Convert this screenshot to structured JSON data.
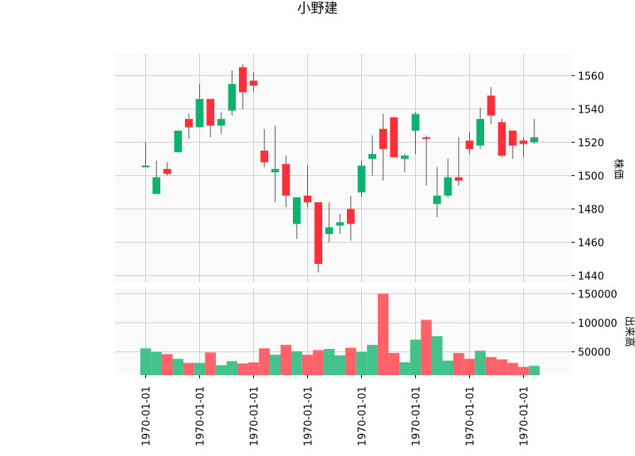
{
  "chart_data": {
    "type": "candlestick",
    "title": "小野建",
    "up_color": "#0fb16e",
    "down_color": "#ff2f3a",
    "volume_up_color": "#44c28c",
    "volume_down_color": "#ff6268",
    "price_panel": {
      "ylabel": "株価",
      "ylim": [
        1436,
        1573
      ],
      "yticks": [
        1440,
        1460,
        1480,
        1500,
        1520,
        1540,
        1560
      ],
      "ytick_labels": [
        "1440",
        "1460",
        "1480",
        "1500",
        "1520",
        "1540",
        "1560"
      ]
    },
    "volume_panel": {
      "ylabel": "出来高",
      "ylim": [
        10000,
        160000
      ],
      "yticks": [
        50000,
        100000,
        150000
      ],
      "ytick_labels": [
        "50000",
        "100000",
        "150000"
      ]
    },
    "x_tick_labels": [
      "1970-01-01",
      "1970-01-01",
      "1970-01-01",
      "1970-01-01",
      "1970-01-01",
      "1970-01-01",
      "1970-01-01",
      "1970-01-01"
    ],
    "x_tick_indices": [
      0,
      5,
      10,
      15,
      20,
      25,
      30,
      35
    ],
    "grid": true,
    "candles": [
      {
        "open": 1505,
        "high": 1520,
        "low": 1505,
        "close": 1506,
        "volume": 56000
      },
      {
        "open": 1489,
        "high": 1509,
        "low": 1489,
        "close": 1499,
        "volume": 50000
      },
      {
        "open": 1504,
        "high": 1508,
        "low": 1500,
        "close": 1501,
        "volume": 46000
      },
      {
        "open": 1514,
        "high": 1527,
        "low": 1514,
        "close": 1527,
        "volume": 38000
      },
      {
        "open": 1534,
        "high": 1537,
        "low": 1522,
        "close": 1529,
        "volume": 31000
      },
      {
        "open": 1529,
        "high": 1555,
        "low": 1529,
        "close": 1546,
        "volume": 31000
      },
      {
        "open": 1546,
        "high": 1546,
        "low": 1523,
        "close": 1530,
        "volume": 49000
      },
      {
        "open": 1530,
        "high": 1538,
        "low": 1525,
        "close": 1534,
        "volume": 27000
      },
      {
        "open": 1539,
        "high": 1563,
        "low": 1536,
        "close": 1555,
        "volume": 34000
      },
      {
        "open": 1565,
        "high": 1567,
        "low": 1540,
        "close": 1550,
        "volume": 30000
      },
      {
        "open": 1557,
        "high": 1562,
        "low": 1550,
        "close": 1554,
        "volume": 32000
      },
      {
        "open": 1515,
        "high": 1528,
        "low": 1505,
        "close": 1508,
        "volume": 56000
      },
      {
        "open": 1502,
        "high": 1530,
        "low": 1484,
        "close": 1504,
        "volume": 45000
      },
      {
        "open": 1507,
        "high": 1512,
        "low": 1481,
        "close": 1488,
        "volume": 62000
      },
      {
        "open": 1471,
        "high": 1487,
        "low": 1462,
        "close": 1487,
        "volume": 51000
      },
      {
        "open": 1488,
        "high": 1506,
        "low": 1481,
        "close": 1484,
        "volume": 45000
      },
      {
        "open": 1484,
        "high": 1484,
        "low": 1442,
        "close": 1447,
        "volume": 53000
      },
      {
        "open": 1465,
        "high": 1484,
        "low": 1460,
        "close": 1469,
        "volume": 55000
      },
      {
        "open": 1470,
        "high": 1477,
        "low": 1465,
        "close": 1472,
        "volume": 44000
      },
      {
        "open": 1480,
        "high": 1488,
        "low": 1461,
        "close": 1471,
        "volume": 57000
      },
      {
        "open": 1490,
        "high": 1509,
        "low": 1487,
        "close": 1506,
        "volume": 50000
      },
      {
        "open": 1510,
        "high": 1524,
        "low": 1500,
        "close": 1513,
        "volume": 62000
      },
      {
        "open": 1528,
        "high": 1537,
        "low": 1497,
        "close": 1516,
        "volume": 150000
      },
      {
        "open": 1535,
        "high": 1535,
        "low": 1511,
        "close": 1511,
        "volume": 48000
      },
      {
        "open": 1510,
        "high": 1513,
        "low": 1502,
        "close": 1512,
        "volume": 32000
      },
      {
        "open": 1527,
        "high": 1538,
        "low": 1513,
        "close": 1537,
        "volume": 71000
      },
      {
        "open": 1523,
        "high": 1524,
        "low": 1494,
        "close": 1522,
        "volume": 105000
      },
      {
        "open": 1483,
        "high": 1505,
        "low": 1475,
        "close": 1488,
        "volume": 77000
      },
      {
        "open": 1488,
        "high": 1510,
        "low": 1487,
        "close": 1499,
        "volume": 35000
      },
      {
        "open": 1499,
        "high": 1523,
        "low": 1494,
        "close": 1497,
        "volume": 48000
      },
      {
        "open": 1521,
        "high": 1526,
        "low": 1513,
        "close": 1516,
        "volume": 38000
      },
      {
        "open": 1518,
        "high": 1541,
        "low": 1516,
        "close": 1534,
        "volume": 52000
      },
      {
        "open": 1548,
        "high": 1553,
        "low": 1531,
        "close": 1536,
        "volume": 41000
      },
      {
        "open": 1532,
        "high": 1534,
        "low": 1511,
        "close": 1512,
        "volume": 37000
      },
      {
        "open": 1527,
        "high": 1527,
        "low": 1510,
        "close": 1518,
        "volume": 31000
      },
      {
        "open": 1521,
        "high": 1523,
        "low": 1511,
        "close": 1519,
        "volume": 24000
      },
      {
        "open": 1520,
        "high": 1534,
        "low": 1519,
        "close": 1523,
        "volume": 26000
      }
    ]
  }
}
